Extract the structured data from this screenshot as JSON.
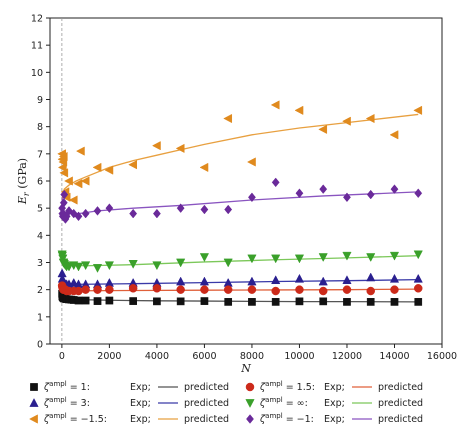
{
  "chart_data": {
    "type": "scatter",
    "title": "",
    "xlabel": "N",
    "ylabel": "E_r (GPa)",
    "ylabel_main": "E",
    "ylabel_sub": "r",
    "ylabel_unit": " (GPa)",
    "xlim": [
      -500,
      16000
    ],
    "ylim": [
      0,
      12
    ],
    "xticks": [
      0,
      2000,
      4000,
      6000,
      8000,
      10000,
      12000,
      14000,
      16000
    ],
    "yticks": [
      0,
      1,
      2,
      3,
      4,
      5,
      6,
      7,
      8,
      9,
      10,
      11,
      12
    ],
    "grid": false,
    "legend_placement": "bottom",
    "legend_exp_label": "Exp;",
    "legend_pred_label": "predicted",
    "series": [
      {
        "legend_param": "ζ",
        "legend_sup": "ampl",
        "legend_value": " = 1:",
        "marker": "square",
        "color": "#111111",
        "line_color": "#555555",
        "points": [
          [
            10,
            1.85
          ],
          [
            20,
            1.75
          ],
          [
            40,
            1.72
          ],
          [
            60,
            1.7
          ],
          [
            80,
            1.68
          ],
          [
            100,
            1.68
          ],
          [
            150,
            1.66
          ],
          [
            200,
            1.65
          ],
          [
            300,
            1.64
          ],
          [
            400,
            1.63
          ],
          [
            500,
            1.62
          ],
          [
            700,
            1.6
          ],
          [
            1000,
            1.6
          ],
          [
            1500,
            1.58
          ],
          [
            2000,
            1.6
          ],
          [
            3000,
            1.58
          ],
          [
            4000,
            1.57
          ],
          [
            5000,
            1.57
          ],
          [
            6000,
            1.58
          ],
          [
            7000,
            1.55
          ],
          [
            8000,
            1.55
          ],
          [
            9000,
            1.55
          ],
          [
            10000,
            1.57
          ],
          [
            11000,
            1.57
          ],
          [
            12000,
            1.55
          ],
          [
            13000,
            1.55
          ],
          [
            14000,
            1.55
          ],
          [
            15000,
            1.55
          ]
        ],
        "curve": [
          [
            0,
            1.95
          ],
          [
            50,
            1.75
          ],
          [
            150,
            1.7
          ],
          [
            300,
            1.67
          ],
          [
            600,
            1.65
          ],
          [
            1000,
            1.63
          ],
          [
            2000,
            1.61
          ],
          [
            4000,
            1.59
          ],
          [
            6000,
            1.58
          ],
          [
            8000,
            1.57
          ],
          [
            10000,
            1.56
          ],
          [
            12000,
            1.56
          ],
          [
            15000,
            1.55
          ]
        ]
      },
      {
        "legend_param": "ζ",
        "legend_sup": "ampl",
        "legend_value": " = 3:",
        "marker": "triangle-up",
        "color": "#2a1f8f",
        "line_color": "#3a3aa8",
        "points": [
          [
            10,
            2.6
          ],
          [
            20,
            2.4
          ],
          [
            40,
            2.3
          ],
          [
            60,
            2.3
          ],
          [
            80,
            2.25
          ],
          [
            100,
            2.25
          ],
          [
            150,
            2.2
          ],
          [
            200,
            2.2
          ],
          [
            300,
            2.2
          ],
          [
            500,
            2.25
          ],
          [
            700,
            2.2
          ],
          [
            1000,
            2.2
          ],
          [
            1500,
            2.2
          ],
          [
            2000,
            2.25
          ],
          [
            3000,
            2.25
          ],
          [
            4000,
            2.25
          ],
          [
            5000,
            2.3
          ],
          [
            6000,
            2.3
          ],
          [
            7000,
            2.25
          ],
          [
            8000,
            2.3
          ],
          [
            9000,
            2.35
          ],
          [
            10000,
            2.4
          ],
          [
            11000,
            2.3
          ],
          [
            12000,
            2.35
          ],
          [
            13000,
            2.45
          ],
          [
            14000,
            2.4
          ],
          [
            15000,
            2.4
          ]
        ],
        "curve": [
          [
            0,
            2.5
          ],
          [
            100,
            2.25
          ],
          [
            500,
            2.2
          ],
          [
            1000,
            2.2
          ],
          [
            3000,
            2.22
          ],
          [
            6000,
            2.26
          ],
          [
            9000,
            2.3
          ],
          [
            12000,
            2.33
          ],
          [
            15000,
            2.37
          ]
        ]
      },
      {
        "legend_param": "ζ",
        "legend_sup": "ampl",
        "legend_value": " = −1.5:",
        "marker": "triangle-left",
        "color": "#e08a1e",
        "line_color": "#e8a040",
        "points": [
          [
            10,
            7.0
          ],
          [
            20,
            6.8
          ],
          [
            40,
            6.5
          ],
          [
            60,
            6.7
          ],
          [
            80,
            6.9
          ],
          [
            100,
            6.3
          ],
          [
            150,
            5.6
          ],
          [
            200,
            5.4
          ],
          [
            300,
            6.0
          ],
          [
            500,
            5.3
          ],
          [
            700,
            5.9
          ],
          [
            800,
            7.1
          ],
          [
            1000,
            6.0
          ],
          [
            1500,
            6.5
          ],
          [
            2000,
            6.4
          ],
          [
            3000,
            6.6
          ],
          [
            4000,
            7.3
          ],
          [
            5000,
            7.2
          ],
          [
            6000,
            6.5
          ],
          [
            7000,
            8.3
          ],
          [
            8000,
            6.7
          ],
          [
            9000,
            8.8
          ],
          [
            10000,
            8.6
          ],
          [
            11000,
            7.9
          ],
          [
            12000,
            8.2
          ],
          [
            13000,
            8.3
          ],
          [
            14000,
            7.7
          ],
          [
            15000,
            8.6
          ]
        ],
        "curve": [
          [
            0,
            5.3
          ],
          [
            100,
            5.7
          ],
          [
            300,
            5.85
          ],
          [
            600,
            6.0
          ],
          [
            1000,
            6.15
          ],
          [
            2000,
            6.5
          ],
          [
            3000,
            6.75
          ],
          [
            4000,
            6.95
          ],
          [
            5000,
            7.15
          ],
          [
            6000,
            7.35
          ],
          [
            8000,
            7.7
          ],
          [
            10000,
            7.95
          ],
          [
            12000,
            8.15
          ],
          [
            15000,
            8.45
          ]
        ]
      },
      {
        "legend_param": "ζ",
        "legend_sup": "ampl",
        "legend_value": " = 1.5:",
        "marker": "circle",
        "color": "#cc2a1a",
        "line_color": "#e0603a",
        "points": [
          [
            10,
            2.15
          ],
          [
            20,
            2.1
          ],
          [
            40,
            2.05
          ],
          [
            60,
            2.0
          ],
          [
            80,
            2.0
          ],
          [
            100,
            2.0
          ],
          [
            150,
            2.0
          ],
          [
            200,
            1.95
          ],
          [
            300,
            1.95
          ],
          [
            500,
            1.95
          ],
          [
            700,
            1.95
          ],
          [
            1000,
            2.0
          ],
          [
            1500,
            2.0
          ],
          [
            2000,
            2.0
          ],
          [
            3000,
            2.05
          ],
          [
            4000,
            2.05
          ],
          [
            5000,
            2.0
          ],
          [
            6000,
            2.0
          ],
          [
            7000,
            2.0
          ],
          [
            8000,
            2.0
          ],
          [
            9000,
            1.95
          ],
          [
            10000,
            2.0
          ],
          [
            11000,
            1.95
          ],
          [
            12000,
            2.0
          ],
          [
            13000,
            1.95
          ],
          [
            14000,
            2.0
          ],
          [
            15000,
            2.05
          ]
        ],
        "curve": [
          [
            0,
            2.1
          ],
          [
            100,
            1.98
          ],
          [
            500,
            1.96
          ],
          [
            1000,
            1.96
          ],
          [
            3000,
            1.97
          ],
          [
            6000,
            1.98
          ],
          [
            9000,
            1.99
          ],
          [
            12000,
            2.0
          ],
          [
            15000,
            2.02
          ]
        ]
      },
      {
        "legend_param": "ζ",
        "legend_sup": "ampl",
        "legend_value": " = ∞:",
        "marker": "triangle-down",
        "color": "#3aa02a",
        "line_color": "#7cc85a",
        "points": [
          [
            10,
            3.3
          ],
          [
            20,
            3.25
          ],
          [
            40,
            3.15
          ],
          [
            60,
            3.0
          ],
          [
            80,
            3.0
          ],
          [
            100,
            2.95
          ],
          [
            150,
            2.9
          ],
          [
            200,
            2.85
          ],
          [
            300,
            2.85
          ],
          [
            500,
            2.9
          ],
          [
            700,
            2.85
          ],
          [
            1000,
            2.9
          ],
          [
            1500,
            2.8
          ],
          [
            2000,
            2.9
          ],
          [
            3000,
            2.95
          ],
          [
            4000,
            2.9
          ],
          [
            5000,
            3.0
          ],
          [
            6000,
            3.2
          ],
          [
            7000,
            3.0
          ],
          [
            8000,
            3.15
          ],
          [
            9000,
            3.15
          ],
          [
            10000,
            3.15
          ],
          [
            11000,
            3.2
          ],
          [
            12000,
            3.25
          ],
          [
            13000,
            3.2
          ],
          [
            14000,
            3.25
          ],
          [
            15000,
            3.3
          ]
        ],
        "curve": [
          [
            0,
            3.3
          ],
          [
            100,
            3.0
          ],
          [
            300,
            2.9
          ],
          [
            1000,
            2.88
          ],
          [
            3000,
            2.92
          ],
          [
            6000,
            3.02
          ],
          [
            9000,
            3.1
          ],
          [
            12000,
            3.17
          ],
          [
            15000,
            3.25
          ]
        ]
      },
      {
        "legend_param": "ζ",
        "legend_sup": "ampl",
        "legend_value": " = −1:",
        "marker": "diamond",
        "color": "#6a2a9a",
        "line_color": "#8a55c0",
        "points": [
          [
            10,
            5.0
          ],
          [
            20,
            4.8
          ],
          [
            40,
            4.7
          ],
          [
            60,
            4.8
          ],
          [
            80,
            5.2
          ],
          [
            100,
            5.5
          ],
          [
            150,
            4.6
          ],
          [
            200,
            4.7
          ],
          [
            300,
            4.9
          ],
          [
            500,
            4.8
          ],
          [
            700,
            4.7
          ],
          [
            1000,
            4.8
          ],
          [
            1500,
            4.9
          ],
          [
            2000,
            5.0
          ],
          [
            3000,
            4.8
          ],
          [
            4000,
            4.8
          ],
          [
            5000,
            5.0
          ],
          [
            6000,
            4.95
          ],
          [
            7000,
            4.95
          ],
          [
            8000,
            5.4
          ],
          [
            9000,
            5.95
          ],
          [
            10000,
            5.55
          ],
          [
            11000,
            5.7
          ],
          [
            12000,
            5.4
          ],
          [
            13000,
            5.5
          ],
          [
            14000,
            5.7
          ],
          [
            15000,
            5.55
          ]
        ],
        "curve": [
          [
            0,
            5.4
          ],
          [
            100,
            4.85
          ],
          [
            300,
            4.8
          ],
          [
            700,
            4.8
          ],
          [
            1500,
            4.9
          ],
          [
            3000,
            5.0
          ],
          [
            5000,
            5.1
          ],
          [
            8000,
            5.3
          ],
          [
            11000,
            5.45
          ],
          [
            15000,
            5.6
          ]
        ]
      }
    ]
  }
}
